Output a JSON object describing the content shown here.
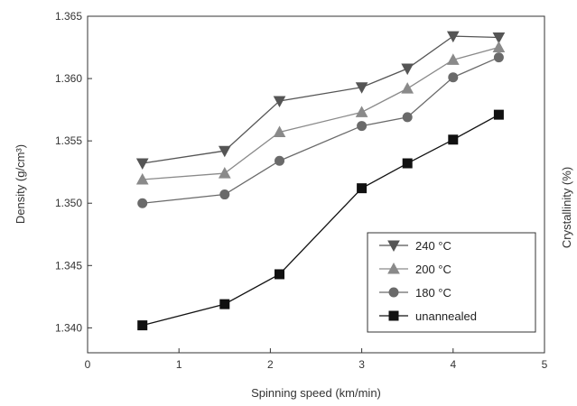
{
  "chart_data": {
    "type": "line",
    "title": "",
    "xlabel": "Spinning speed (km/min)",
    "ylabel": "Density (g/cm³)",
    "ylabel_right": "Crystallinity (%)",
    "xlim": [
      0,
      5
    ],
    "ylim": [
      1.338,
      1.365
    ],
    "x_ticks": [
      0,
      1,
      2,
      3,
      4,
      5
    ],
    "x_tick_labels": [
      "0",
      "1",
      "2",
      "3",
      "4",
      "5"
    ],
    "y_ticks": [
      1.34,
      1.345,
      1.35,
      1.355,
      1.36,
      1.365
    ],
    "y_tick_labels": [
      "1.340",
      "1.345",
      "1.350",
      "1.355",
      "1.360",
      "1.365"
    ],
    "grid": false,
    "legend_position": "bottom-right",
    "x": [
      0.6,
      1.5,
      2.1,
      3.0,
      3.5,
      4.0,
      4.5
    ],
    "series": [
      {
        "name": "240 °C",
        "marker": "triangle-down",
        "color": "#555555",
        "values": [
          1.3532,
          1.3542,
          1.3582,
          1.3593,
          1.3608,
          1.3634,
          1.3633
        ]
      },
      {
        "name": "200 °C",
        "marker": "triangle-up",
        "color": "#8a8a8a",
        "values": [
          1.3519,
          1.3524,
          1.3557,
          1.3573,
          1.3592,
          1.3615,
          1.3625
        ]
      },
      {
        "name": "180 °C",
        "marker": "circle",
        "color": "#6a6a6a",
        "values": [
          1.35,
          1.3507,
          1.3534,
          1.3562,
          1.3569,
          1.3601,
          1.3617
        ]
      },
      {
        "name": "unannealed",
        "marker": "square",
        "color": "#111111",
        "values": [
          1.3402,
          1.3419,
          1.3443,
          1.3512,
          1.3532,
          1.3551,
          1.3571
        ]
      }
    ]
  }
}
